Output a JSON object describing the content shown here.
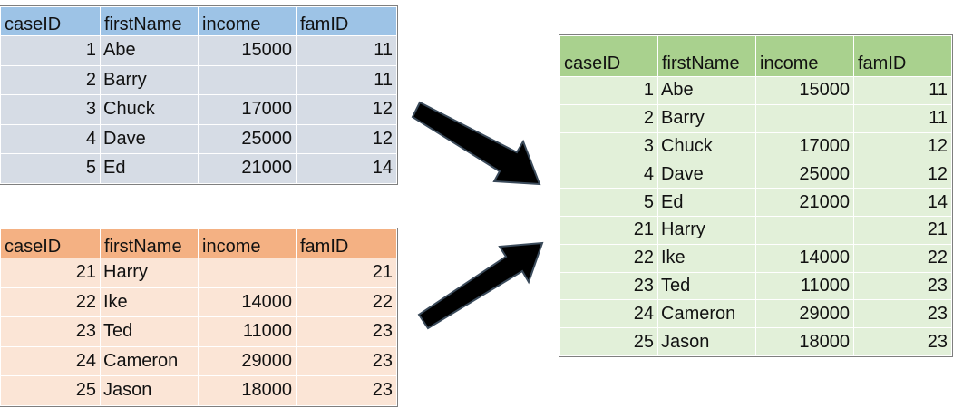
{
  "colors": {
    "table_a_header": "#9dc3e6",
    "table_a_body": "#d6dce5",
    "table_b_header": "#f4b183",
    "table_b_body": "#fbe5d6",
    "table_c_header": "#a9d18e",
    "table_c_body": "#e2f0d9",
    "arrow": "#000000"
  },
  "columns": [
    "caseID",
    "firstName",
    "income",
    "famID"
  ],
  "table_a": {
    "rows": [
      {
        "caseID": "1",
        "firstName": "Abe",
        "income": "15000",
        "famID": "11"
      },
      {
        "caseID": "2",
        "firstName": "Barry",
        "income": "",
        "famID": "11"
      },
      {
        "caseID": "3",
        "firstName": "Chuck",
        "income": "17000",
        "famID": "12"
      },
      {
        "caseID": "4",
        "firstName": "Dave",
        "income": "25000",
        "famID": "12"
      },
      {
        "caseID": "5",
        "firstName": "Ed",
        "income": "21000",
        "famID": "14"
      }
    ]
  },
  "table_b": {
    "rows": [
      {
        "caseID": "21",
        "firstName": "Harry",
        "income": "",
        "famID": "21"
      },
      {
        "caseID": "22",
        "firstName": "Ike",
        "income": "14000",
        "famID": "22"
      },
      {
        "caseID": "23",
        "firstName": "Ted",
        "income": "11000",
        "famID": "23"
      },
      {
        "caseID": "24",
        "firstName": "Cameron",
        "income": "29000",
        "famID": "23"
      },
      {
        "caseID": "25",
        "firstName": "Jason",
        "income": "18000",
        "famID": "23"
      }
    ]
  },
  "table_c": {
    "rows": [
      {
        "caseID": "1",
        "firstName": "Abe",
        "income": "15000",
        "famID": "11"
      },
      {
        "caseID": "2",
        "firstName": "Barry",
        "income": "",
        "famID": "11"
      },
      {
        "caseID": "3",
        "firstName": "Chuck",
        "income": "17000",
        "famID": "12"
      },
      {
        "caseID": "4",
        "firstName": "Dave",
        "income": "25000",
        "famID": "12"
      },
      {
        "caseID": "5",
        "firstName": "Ed",
        "income": "21000",
        "famID": "14"
      },
      {
        "caseID": "21",
        "firstName": "Harry",
        "income": "",
        "famID": "21"
      },
      {
        "caseID": "22",
        "firstName": "Ike",
        "income": "14000",
        "famID": "22"
      },
      {
        "caseID": "23",
        "firstName": "Ted",
        "income": "11000",
        "famID": "23"
      },
      {
        "caseID": "24",
        "firstName": "Cameron",
        "income": "29000",
        "famID": "23"
      },
      {
        "caseID": "25",
        "firstName": "Jason",
        "income": "18000",
        "famID": "23"
      }
    ]
  }
}
